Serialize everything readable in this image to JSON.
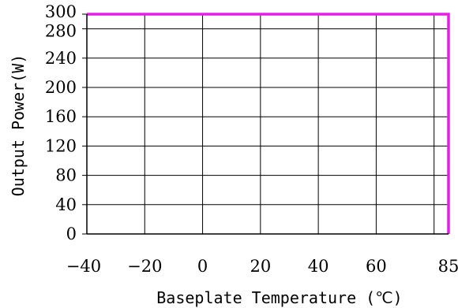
{
  "chart_data": {
    "type": "line",
    "title": "",
    "xlabel": "Baseplate Temperature (℃)",
    "ylabel": "Output Power(W)",
    "xlim": [
      -40,
      85
    ],
    "ylim": [
      0,
      300
    ],
    "x_ticks": [
      -40,
      -20,
      0,
      20,
      40,
      60,
      85
    ],
    "y_ticks": [
      0,
      40,
      80,
      120,
      160,
      200,
      240,
      280,
      300
    ],
    "grid": true,
    "legend": "none",
    "series": [
      {
        "x": [
          -40,
          85,
          85
        ],
        "y": [
          300,
          300,
          0
        ],
        "color": "#e61ee6"
      }
    ]
  }
}
